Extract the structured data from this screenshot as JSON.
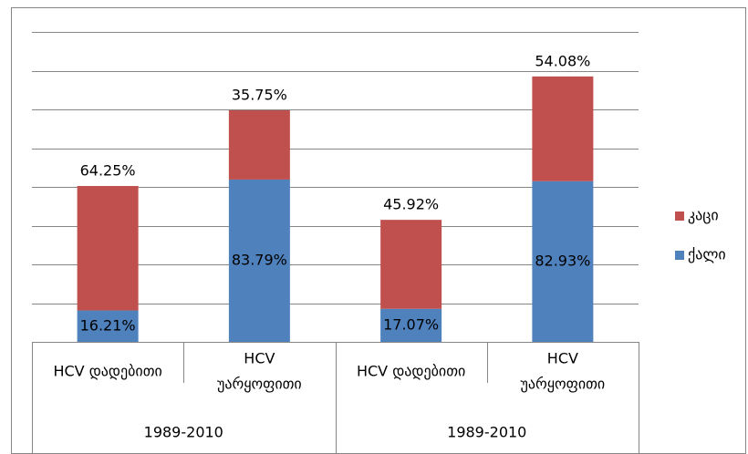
{
  "chart_data": {
    "type": "stacked_bar",
    "categories": [
      [
        "HCV დადებითი"
      ],
      [
        "HCV",
        "უარყოფითი"
      ],
      [
        "HCV დადებითი"
      ],
      [
        "HCV",
        "უარყოფითი"
      ]
    ],
    "groups": [
      "1989-2010",
      "1989-2010"
    ],
    "series": [
      {
        "name": "ქალი",
        "color": "#4f81bd",
        "values": [
          16.21,
          83.79,
          17.07,
          82.93
        ],
        "value_labels": [
          "16.21%",
          "83.79%",
          "17.07%",
          "82.93%"
        ]
      },
      {
        "name": "კაცი",
        "color": "#c0504d",
        "values": [
          64.25,
          35.75,
          45.92,
          54.08
        ],
        "value_labels": [
          "64.25%",
          "35.75%",
          "45.92%",
          "54.08%"
        ]
      }
    ],
    "ylim": [
      0,
      160
    ],
    "yticks": [
      0,
      20,
      40,
      60,
      80,
      100,
      120,
      140,
      160
    ],
    "grid": true,
    "legend": "right"
  }
}
